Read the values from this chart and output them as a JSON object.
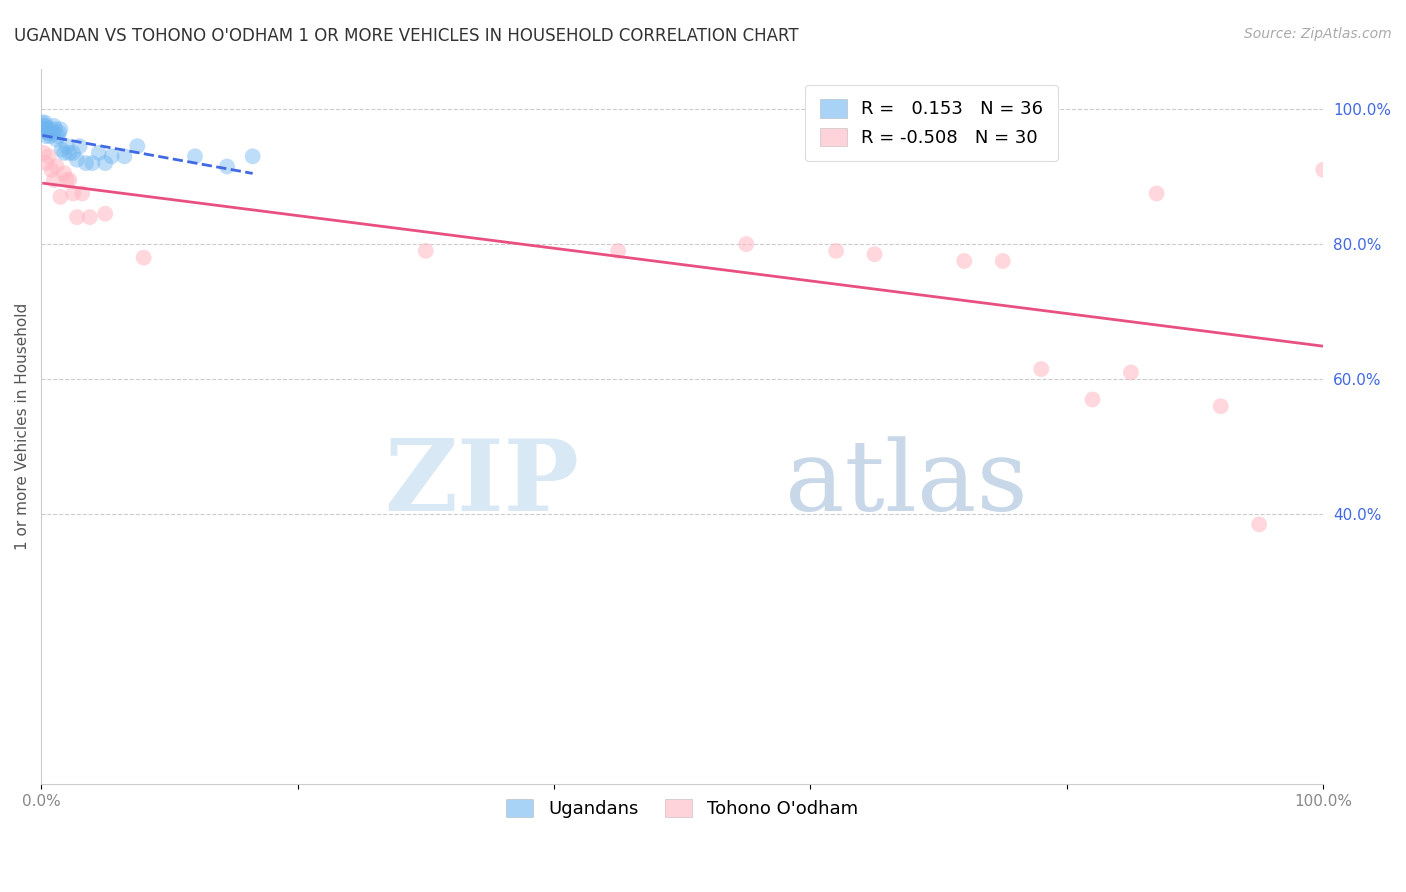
{
  "title": "UGANDAN VS TOHONO O'ODHAM 1 OR MORE VEHICLES IN HOUSEHOLD CORRELATION CHART",
  "source": "Source: ZipAtlas.com",
  "ylabel": "1 or more Vehicles in Household",
  "xlim": [
    0.0,
    1.0
  ],
  "ylim": [
    0.0,
    1.06
  ],
  "background_color": "#ffffff",
  "ugandan_x": [
    0.001,
    0.002,
    0.002,
    0.003,
    0.003,
    0.004,
    0.004,
    0.005,
    0.005,
    0.006,
    0.007,
    0.008,
    0.009,
    0.01,
    0.011,
    0.012,
    0.013,
    0.014,
    0.015,
    0.016,
    0.018,
    0.02,
    0.022,
    0.025,
    0.028,
    0.03,
    0.035,
    0.04,
    0.045,
    0.05,
    0.055,
    0.065,
    0.075,
    0.12,
    0.145,
    0.165
  ],
  "ugandan_y": [
    0.98,
    0.97,
    0.975,
    0.98,
    0.975,
    0.97,
    0.96,
    0.97,
    0.965,
    0.965,
    0.96,
    0.97,
    0.965,
    0.975,
    0.97,
    0.955,
    0.96,
    0.965,
    0.97,
    0.94,
    0.935,
    0.945,
    0.935,
    0.935,
    0.925,
    0.945,
    0.92,
    0.92,
    0.935,
    0.92,
    0.93,
    0.93,
    0.945,
    0.93,
    0.915,
    0.93
  ],
  "ugandan_R": 0.153,
  "ugandan_N": 36,
  "ugandan_color": "#6EB5F0",
  "ugandan_line_color": "#4169E1",
  "tohono_x": [
    0.002,
    0.004,
    0.006,
    0.008,
    0.01,
    0.012,
    0.015,
    0.018,
    0.02,
    0.022,
    0.025,
    0.028,
    0.032,
    0.038,
    0.05,
    0.08,
    0.3,
    0.45,
    0.55,
    0.62,
    0.65,
    0.72,
    0.75,
    0.78,
    0.82,
    0.85,
    0.87,
    0.92,
    0.95,
    1.0
  ],
  "tohono_y": [
    0.935,
    0.92,
    0.93,
    0.91,
    0.895,
    0.915,
    0.87,
    0.905,
    0.895,
    0.895,
    0.875,
    0.84,
    0.875,
    0.84,
    0.845,
    0.78,
    0.79,
    0.79,
    0.8,
    0.79,
    0.785,
    0.775,
    0.775,
    0.615,
    0.57,
    0.61,
    0.875,
    0.56,
    0.385,
    0.91
  ],
  "tohono_R": -0.508,
  "tohono_N": 30,
  "tohono_color": "#FFB6C1",
  "tohono_line_color": "#E85080",
  "watermark_zip": "ZIP",
  "watermark_atlas": "atlas",
  "watermark_color_zip": "#D8E8F5",
  "watermark_color_atlas": "#C8D8E8",
  "ytick_labels_right": [
    "100.0%",
    "80.0%",
    "60.0%",
    "40.0%"
  ],
  "ytick_values": [
    1.0,
    0.8,
    0.6,
    0.4
  ],
  "grid_values": [
    1.0,
    0.8,
    0.6,
    0.4
  ],
  "xtick_labels": [
    "0.0%",
    "",
    "",
    "",
    "",
    "100.0%"
  ],
  "xtick_values": [
    0.0,
    0.2,
    0.4,
    0.6,
    0.8,
    1.0
  ],
  "title_fontsize": 12,
  "axis_label_fontsize": 11,
  "tick_fontsize": 11,
  "legend_fontsize": 13,
  "source_fontsize": 10
}
